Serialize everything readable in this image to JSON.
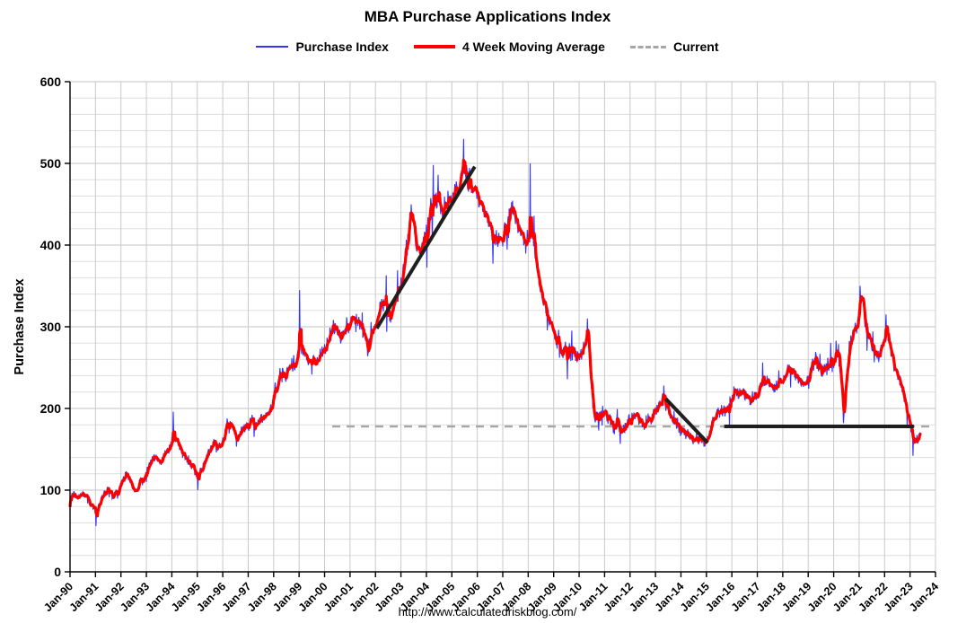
{
  "footer": {
    "url_text": "http://www.calculatedriskblog.com/"
  },
  "chart_data": {
    "type": "line",
    "title": "MBA Purchase Applications Index",
    "ylabel": "Purchase Index",
    "xlabel": "",
    "ylim": [
      0,
      600
    ],
    "y_ticks": [
      0,
      100,
      200,
      300,
      400,
      500,
      600
    ],
    "y_minor_step": 20,
    "grid": "on",
    "legend_position": "top",
    "x_range": [
      1990,
      2024
    ],
    "x_ticks": [
      "Jan-90",
      "Jan-91",
      "Jan-92",
      "Jan-93",
      "Jan-94",
      "Jan-95",
      "Jan-96",
      "Jan-97",
      "Jan-98",
      "Jan-99",
      "Jan-00",
      "Jan-01",
      "Jan-02",
      "Jan-03",
      "Jan-04",
      "Jan-05",
      "Jan-06",
      "Jan-07",
      "Jan-08",
      "Jan-09",
      "Jan-10",
      "Jan-11",
      "Jan-12",
      "Jan-13",
      "Jan-14",
      "Jan-15",
      "Jan-16",
      "Jan-17",
      "Jan-18",
      "Jan-19",
      "Jan-20",
      "Jan-21",
      "Jan-22",
      "Jan-23",
      "Jan-24"
    ],
    "legend": [
      {
        "label": "Purchase Index",
        "color": "#3333ff",
        "style": "solid-thin"
      },
      {
        "label": "4 Week Moving Average",
        "color": "#ff0000",
        "style": "solid-thick"
      },
      {
        "label": "Current",
        "color": "#a6a6a6",
        "style": "dashed"
      }
    ],
    "current_value": 178,
    "current_span": [
      2000.3,
      2024
    ],
    "series": [
      {
        "name": "4 Week Moving Average",
        "color": "#ff0000",
        "width": 3.2,
        "points": [
          [
            1990.0,
            90
          ],
          [
            1990.15,
            97
          ],
          [
            1990.3,
            88
          ],
          [
            1990.45,
            95
          ],
          [
            1990.6,
            92
          ],
          [
            1990.75,
            85
          ],
          [
            1990.9,
            78
          ],
          [
            1991.05,
            72
          ],
          [
            1991.2,
            85
          ],
          [
            1991.35,
            97
          ],
          [
            1991.5,
            100
          ],
          [
            1991.65,
            92
          ],
          [
            1991.8,
            97
          ],
          [
            1991.95,
            103
          ],
          [
            1992.1,
            115
          ],
          [
            1992.25,
            120
          ],
          [
            1992.4,
            108
          ],
          [
            1992.55,
            98
          ],
          [
            1992.7,
            105
          ],
          [
            1992.85,
            112
          ],
          [
            1993.0,
            122
          ],
          [
            1993.15,
            132
          ],
          [
            1993.3,
            140
          ],
          [
            1993.45,
            132
          ],
          [
            1993.6,
            138
          ],
          [
            1993.75,
            147
          ],
          [
            1993.9,
            152
          ],
          [
            1994.05,
            160
          ],
          [
            1994.2,
            163
          ],
          [
            1994.35,
            150
          ],
          [
            1994.5,
            142
          ],
          [
            1994.65,
            136
          ],
          [
            1994.8,
            130
          ],
          [
            1994.95,
            122
          ],
          [
            1995.1,
            120
          ],
          [
            1995.25,
            132
          ],
          [
            1995.4,
            143
          ],
          [
            1995.55,
            152
          ],
          [
            1995.7,
            157
          ],
          [
            1995.85,
            152
          ],
          [
            1996.0,
            162
          ],
          [
            1996.15,
            180
          ],
          [
            1996.3,
            183
          ],
          [
            1996.45,
            172
          ],
          [
            1996.6,
            165
          ],
          [
            1996.75,
            172
          ],
          [
            1996.9,
            176
          ],
          [
            1997.05,
            180
          ],
          [
            1997.2,
            186
          ],
          [
            1997.35,
            182
          ],
          [
            1997.5,
            188
          ],
          [
            1997.65,
            192
          ],
          [
            1997.8,
            198
          ],
          [
            1997.95,
            205
          ],
          [
            1998.1,
            228
          ],
          [
            1998.25,
            242
          ],
          [
            1998.4,
            238
          ],
          [
            1998.55,
            247
          ],
          [
            1998.7,
            252
          ],
          [
            1998.85,
            255
          ],
          [
            1999.0,
            278
          ],
          [
            1999.15,
            272
          ],
          [
            1999.3,
            262
          ],
          [
            1999.45,
            258
          ],
          [
            1999.6,
            255
          ],
          [
            1999.75,
            262
          ],
          [
            1999.9,
            265
          ],
          [
            2000.05,
            275
          ],
          [
            2000.2,
            290
          ],
          [
            2000.35,
            300
          ],
          [
            2000.5,
            295
          ],
          [
            2000.65,
            288
          ],
          [
            2000.8,
            292
          ],
          [
            2000.95,
            298
          ],
          [
            2001.1,
            315
          ],
          [
            2001.25,
            308
          ],
          [
            2001.4,
            300
          ],
          [
            2001.55,
            295
          ],
          [
            2001.7,
            272
          ],
          [
            2001.85,
            288
          ],
          [
            2002.0,
            302
          ],
          [
            2002.15,
            318
          ],
          [
            2002.3,
            330
          ],
          [
            2002.45,
            322
          ],
          [
            2002.6,
            312
          ],
          [
            2002.75,
            330
          ],
          [
            2002.9,
            342
          ],
          [
            2003.05,
            358
          ],
          [
            2003.2,
            390
          ],
          [
            2003.35,
            428
          ],
          [
            2003.45,
            445
          ],
          [
            2003.6,
            398
          ],
          [
            2003.75,
            392
          ],
          [
            2003.9,
            405
          ],
          [
            2004.05,
            425
          ],
          [
            2004.2,
            448
          ],
          [
            2004.35,
            460
          ],
          [
            2004.5,
            452
          ],
          [
            2004.65,
            442
          ],
          [
            2004.8,
            448
          ],
          [
            2004.95,
            455
          ],
          [
            2005.1,
            462
          ],
          [
            2005.25,
            472
          ],
          [
            2005.4,
            488
          ],
          [
            2005.5,
            494
          ],
          [
            2005.65,
            480
          ],
          [
            2005.8,
            470
          ],
          [
            2005.95,
            468
          ],
          [
            2006.1,
            452
          ],
          [
            2006.25,
            442
          ],
          [
            2006.4,
            435
          ],
          [
            2006.55,
            420
          ],
          [
            2006.7,
            410
          ],
          [
            2006.85,
            404
          ],
          [
            2007.0,
            406
          ],
          [
            2007.15,
            424
          ],
          [
            2007.3,
            438
          ],
          [
            2007.45,
            442
          ],
          [
            2007.6,
            425
          ],
          [
            2007.75,
            412
          ],
          [
            2007.9,
            405
          ],
          [
            2008.05,
            408
          ],
          [
            2008.15,
            418
          ],
          [
            2008.3,
            380
          ],
          [
            2008.45,
            352
          ],
          [
            2008.6,
            335
          ],
          [
            2008.75,
            318
          ],
          [
            2008.9,
            302
          ],
          [
            2009.05,
            288
          ],
          [
            2009.2,
            278
          ],
          [
            2009.35,
            268
          ],
          [
            2009.5,
            272
          ],
          [
            2009.65,
            275
          ],
          [
            2009.8,
            268
          ],
          [
            2009.95,
            262
          ],
          [
            2010.1,
            268
          ],
          [
            2010.25,
            282
          ],
          [
            2010.35,
            288
          ],
          [
            2010.5,
            215
          ],
          [
            2010.6,
            192
          ],
          [
            2010.75,
            188
          ],
          [
            2010.9,
            198
          ],
          [
            2011.05,
            192
          ],
          [
            2011.2,
            186
          ],
          [
            2011.35,
            180
          ],
          [
            2011.5,
            184
          ],
          [
            2011.65,
            172
          ],
          [
            2011.8,
            178
          ],
          [
            2011.95,
            184
          ],
          [
            2012.1,
            188
          ],
          [
            2012.25,
            192
          ],
          [
            2012.4,
            186
          ],
          [
            2012.55,
            180
          ],
          [
            2012.7,
            184
          ],
          [
            2012.85,
            188
          ],
          [
            2013.0,
            196
          ],
          [
            2013.15,
            204
          ],
          [
            2013.3,
            210
          ],
          [
            2013.45,
            202
          ],
          [
            2013.6,
            190
          ],
          [
            2013.75,
            184
          ],
          [
            2013.9,
            178
          ],
          [
            2014.05,
            172
          ],
          [
            2014.2,
            168
          ],
          [
            2014.35,
            166
          ],
          [
            2014.5,
            164
          ],
          [
            2014.65,
            163
          ],
          [
            2014.8,
            160
          ],
          [
            2014.95,
            158
          ],
          [
            2015.1,
            168
          ],
          [
            2015.25,
            185
          ],
          [
            2015.4,
            192
          ],
          [
            2015.55,
            196
          ],
          [
            2015.7,
            198
          ],
          [
            2015.85,
            202
          ],
          [
            2016.0,
            210
          ],
          [
            2016.15,
            218
          ],
          [
            2016.3,
            222
          ],
          [
            2016.45,
            218
          ],
          [
            2016.6,
            214
          ],
          [
            2016.75,
            210
          ],
          [
            2016.9,
            214
          ],
          [
            2017.05,
            222
          ],
          [
            2017.2,
            232
          ],
          [
            2017.35,
            236
          ],
          [
            2017.5,
            230
          ],
          [
            2017.65,
            226
          ],
          [
            2017.8,
            230
          ],
          [
            2017.95,
            234
          ],
          [
            2018.1,
            242
          ],
          [
            2018.25,
            250
          ],
          [
            2018.4,
            246
          ],
          [
            2018.55,
            240
          ],
          [
            2018.7,
            234
          ],
          [
            2018.85,
            228
          ],
          [
            2019.0,
            238
          ],
          [
            2019.15,
            252
          ],
          [
            2019.3,
            258
          ],
          [
            2019.45,
            250
          ],
          [
            2019.6,
            244
          ],
          [
            2019.75,
            250
          ],
          [
            2019.9,
            254
          ],
          [
            2020.05,
            262
          ],
          [
            2020.2,
            275
          ],
          [
            2020.3,
            228
          ],
          [
            2020.38,
            188
          ],
          [
            2020.5,
            238
          ],
          [
            2020.65,
            278
          ],
          [
            2020.8,
            295
          ],
          [
            2020.95,
            305
          ],
          [
            2021.05,
            332
          ],
          [
            2021.12,
            340
          ],
          [
            2021.25,
            308
          ],
          [
            2021.4,
            288
          ],
          [
            2021.55,
            268
          ],
          [
            2021.7,
            262
          ],
          [
            2021.85,
            272
          ],
          [
            2022.0,
            288
          ],
          [
            2022.1,
            296
          ],
          [
            2022.25,
            268
          ],
          [
            2022.4,
            248
          ],
          [
            2022.55,
            238
          ],
          [
            2022.7,
            222
          ],
          [
            2022.85,
            200
          ],
          [
            2023.0,
            182
          ],
          [
            2023.1,
            170
          ],
          [
            2023.2,
            158
          ],
          [
            2023.3,
            164
          ],
          [
            2023.4,
            170
          ],
          [
            2023.45,
            172
          ]
        ]
      },
      {
        "name": "Purchase Index",
        "color": "#3333ff",
        "width": 1.1,
        "noise_seed": 20230615,
        "noise_base": 6,
        "noise_scale": 0.032
      }
    ],
    "spike_points": [
      [
        1991.02,
        56
      ],
      [
        1994.06,
        196
      ],
      [
        1995.02,
        100
      ],
      [
        1999.02,
        345
      ],
      [
        2004.27,
        498
      ],
      [
        2005.46,
        530
      ],
      [
        2008.07,
        500
      ],
      [
        2010.33,
        310
      ],
      [
        2013.33,
        228
      ],
      [
        2020.1,
        283
      ],
      [
        2021.04,
        350
      ],
      [
        2022.06,
        315
      ],
      [
        2023.12,
        142
      ]
    ],
    "trend_lines": [
      {
        "name": "bubble-uptrend",
        "color": "#1f1f1f",
        "width": 4,
        "points": [
          [
            2002.05,
            298
          ],
          [
            2005.9,
            496
          ]
        ]
      },
      {
        "name": "taper-downtrend",
        "color": "#1f1f1f",
        "width": 4,
        "points": [
          [
            2013.4,
            212
          ],
          [
            2015.05,
            158
          ]
        ]
      },
      {
        "name": "flat-trend",
        "color": "#1f1f1f",
        "width": 4,
        "points": [
          [
            2015.7,
            178
          ],
          [
            2023.15,
            178
          ]
        ]
      }
    ]
  }
}
